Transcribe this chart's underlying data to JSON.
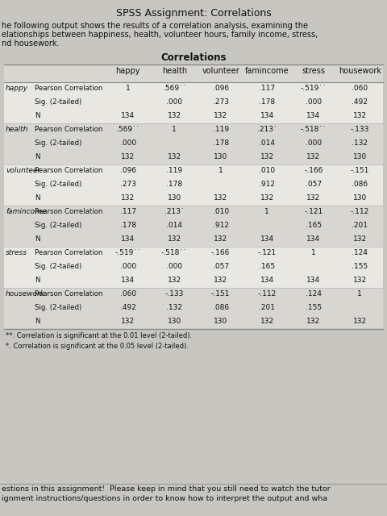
{
  "title": "SPSS Assignment: Correlations",
  "subtitle1": "he following output shows the results of a correlation analysis, examining the",
  "subtitle2": "elationships between happiness, health, volunteer hours, family income, stress,",
  "subtitle3": "nd housework.",
  "table_title": "Correlations",
  "col_headers": [
    "happy",
    "health",
    "volunteer",
    "famincome",
    "stress",
    "housework"
  ],
  "rows": [
    {
      "var": "happy",
      "label": "Pearson Correlation",
      "vals": [
        "1",
        ".569˙˙",
        ".096",
        ".117",
        "-.519˙˙",
        ".060"
      ]
    },
    {
      "var": "",
      "label": "Sig. (2-tailed)",
      "vals": [
        "",
        ".000",
        ".273",
        ".178",
        ".000",
        ".492"
      ]
    },
    {
      "var": "",
      "label": "N",
      "vals": [
        "134",
        "132",
        "132",
        "134",
        "134",
        "132"
      ]
    },
    {
      "var": "health",
      "label": "Pearson Correlation",
      "vals": [
        ".569˙˙",
        "1",
        ".119",
        ".213˙",
        "-.518˙˙",
        "-.133"
      ]
    },
    {
      "var": "",
      "label": "Sig. (2-tailed)",
      "vals": [
        ".000",
        "",
        ".178",
        ".014",
        ".000",
        ".132"
      ]
    },
    {
      "var": "",
      "label": "N",
      "vals": [
        "132",
        "132",
        "130",
        "132",
        "132",
        "130"
      ]
    },
    {
      "var": "volunteer",
      "label": "Pearson Correlation",
      "vals": [
        ".096",
        ".119",
        "1",
        ".010",
        "-.166",
        "-.151"
      ]
    },
    {
      "var": "",
      "label": "Sig. (2-tailed)",
      "vals": [
        ".273",
        ".178",
        "",
        ".912",
        ".057",
        ".086"
      ]
    },
    {
      "var": "",
      "label": "N",
      "vals": [
        "132",
        "130",
        "132",
        "132",
        "132",
        "130"
      ]
    },
    {
      "var": "famincome",
      "label": "Pearson Correlation",
      "vals": [
        ".117",
        ".213˙",
        ".010",
        "1",
        "-.121",
        "-.112"
      ]
    },
    {
      "var": "",
      "label": "Sig. (2-tailed)",
      "vals": [
        ".178",
        ".014",
        ".912",
        "",
        ".165",
        ".201"
      ]
    },
    {
      "var": "",
      "label": "N",
      "vals": [
        "134",
        "132",
        "132",
        "134",
        "134",
        "132"
      ]
    },
    {
      "var": "stress",
      "label": "Pearson Correlation",
      "vals": [
        "-.519˙˙",
        "-.518˙˙",
        "-.166",
        "-.121",
        "1",
        ".124"
      ]
    },
    {
      "var": "",
      "label": "Sig. (2-tailed)",
      "vals": [
        ".000",
        ".000",
        ".057",
        ".165",
        "",
        ".155"
      ]
    },
    {
      "var": "",
      "label": "N",
      "vals": [
        "134",
        "132",
        "132",
        "134",
        "134",
        "132"
      ]
    },
    {
      "var": "housework",
      "label": "Pearson Correlation",
      "vals": [
        ".060",
        "-.133",
        "-.151",
        "-.112",
        ".124",
        "1"
      ]
    },
    {
      "var": "",
      "label": "Sig. (2-tailed)",
      "vals": [
        ".492",
        ".132",
        ".086",
        ".201",
        ".155",
        ""
      ]
    },
    {
      "var": "",
      "label": "N",
      "vals": [
        "132",
        "130",
        "130",
        "132",
        "132",
        "132"
      ]
    }
  ],
  "footnote1": "**. Correlation is significant at the 0.01 level (2-tailed).",
  "footnote2": "*. Correlation is significant at the 0.05 level (2-tailed).",
  "footer1": "estions in this assignment!  Please keep in mind that you still need to watch the tutor",
  "footer2": "ignment instructions/questions in order to know how to interpret the output and wha",
  "bg_color": "#c8c6c0",
  "table_white": "#e8e7e2",
  "table_stripe": "#d8d6d0",
  "border_dark": "#888884",
  "border_light": "#b0aead",
  "text_dark": "#111111",
  "text_med": "#222222"
}
